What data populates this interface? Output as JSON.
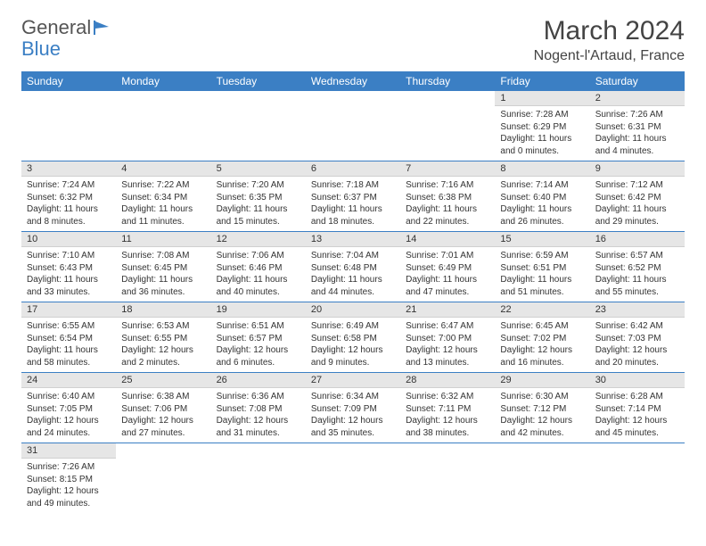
{
  "logo": {
    "text1": "General",
    "text2": "Blue"
  },
  "title": "March 2024",
  "location": "Nogent-l'Artaud, France",
  "colors": {
    "header_bg": "#3b7fc4",
    "header_text": "#ffffff",
    "daynum_bg": "#e6e6e6",
    "row_border": "#3b7fc4",
    "body_text": "#333333",
    "background": "#ffffff"
  },
  "weekdays": [
    "Sunday",
    "Monday",
    "Tuesday",
    "Wednesday",
    "Thursday",
    "Friday",
    "Saturday"
  ],
  "weeks": [
    [
      null,
      null,
      null,
      null,
      null,
      {
        "n": "1",
        "sunrise": "Sunrise: 7:28 AM",
        "sunset": "Sunset: 6:29 PM",
        "daylight": "Daylight: 11 hours and 0 minutes."
      },
      {
        "n": "2",
        "sunrise": "Sunrise: 7:26 AM",
        "sunset": "Sunset: 6:31 PM",
        "daylight": "Daylight: 11 hours and 4 minutes."
      }
    ],
    [
      {
        "n": "3",
        "sunrise": "Sunrise: 7:24 AM",
        "sunset": "Sunset: 6:32 PM",
        "daylight": "Daylight: 11 hours and 8 minutes."
      },
      {
        "n": "4",
        "sunrise": "Sunrise: 7:22 AM",
        "sunset": "Sunset: 6:34 PM",
        "daylight": "Daylight: 11 hours and 11 minutes."
      },
      {
        "n": "5",
        "sunrise": "Sunrise: 7:20 AM",
        "sunset": "Sunset: 6:35 PM",
        "daylight": "Daylight: 11 hours and 15 minutes."
      },
      {
        "n": "6",
        "sunrise": "Sunrise: 7:18 AM",
        "sunset": "Sunset: 6:37 PM",
        "daylight": "Daylight: 11 hours and 18 minutes."
      },
      {
        "n": "7",
        "sunrise": "Sunrise: 7:16 AM",
        "sunset": "Sunset: 6:38 PM",
        "daylight": "Daylight: 11 hours and 22 minutes."
      },
      {
        "n": "8",
        "sunrise": "Sunrise: 7:14 AM",
        "sunset": "Sunset: 6:40 PM",
        "daylight": "Daylight: 11 hours and 26 minutes."
      },
      {
        "n": "9",
        "sunrise": "Sunrise: 7:12 AM",
        "sunset": "Sunset: 6:42 PM",
        "daylight": "Daylight: 11 hours and 29 minutes."
      }
    ],
    [
      {
        "n": "10",
        "sunrise": "Sunrise: 7:10 AM",
        "sunset": "Sunset: 6:43 PM",
        "daylight": "Daylight: 11 hours and 33 minutes."
      },
      {
        "n": "11",
        "sunrise": "Sunrise: 7:08 AM",
        "sunset": "Sunset: 6:45 PM",
        "daylight": "Daylight: 11 hours and 36 minutes."
      },
      {
        "n": "12",
        "sunrise": "Sunrise: 7:06 AM",
        "sunset": "Sunset: 6:46 PM",
        "daylight": "Daylight: 11 hours and 40 minutes."
      },
      {
        "n": "13",
        "sunrise": "Sunrise: 7:04 AM",
        "sunset": "Sunset: 6:48 PM",
        "daylight": "Daylight: 11 hours and 44 minutes."
      },
      {
        "n": "14",
        "sunrise": "Sunrise: 7:01 AM",
        "sunset": "Sunset: 6:49 PM",
        "daylight": "Daylight: 11 hours and 47 minutes."
      },
      {
        "n": "15",
        "sunrise": "Sunrise: 6:59 AM",
        "sunset": "Sunset: 6:51 PM",
        "daylight": "Daylight: 11 hours and 51 minutes."
      },
      {
        "n": "16",
        "sunrise": "Sunrise: 6:57 AM",
        "sunset": "Sunset: 6:52 PM",
        "daylight": "Daylight: 11 hours and 55 minutes."
      }
    ],
    [
      {
        "n": "17",
        "sunrise": "Sunrise: 6:55 AM",
        "sunset": "Sunset: 6:54 PM",
        "daylight": "Daylight: 11 hours and 58 minutes."
      },
      {
        "n": "18",
        "sunrise": "Sunrise: 6:53 AM",
        "sunset": "Sunset: 6:55 PM",
        "daylight": "Daylight: 12 hours and 2 minutes."
      },
      {
        "n": "19",
        "sunrise": "Sunrise: 6:51 AM",
        "sunset": "Sunset: 6:57 PM",
        "daylight": "Daylight: 12 hours and 6 minutes."
      },
      {
        "n": "20",
        "sunrise": "Sunrise: 6:49 AM",
        "sunset": "Sunset: 6:58 PM",
        "daylight": "Daylight: 12 hours and 9 minutes."
      },
      {
        "n": "21",
        "sunrise": "Sunrise: 6:47 AM",
        "sunset": "Sunset: 7:00 PM",
        "daylight": "Daylight: 12 hours and 13 minutes."
      },
      {
        "n": "22",
        "sunrise": "Sunrise: 6:45 AM",
        "sunset": "Sunset: 7:02 PM",
        "daylight": "Daylight: 12 hours and 16 minutes."
      },
      {
        "n": "23",
        "sunrise": "Sunrise: 6:42 AM",
        "sunset": "Sunset: 7:03 PM",
        "daylight": "Daylight: 12 hours and 20 minutes."
      }
    ],
    [
      {
        "n": "24",
        "sunrise": "Sunrise: 6:40 AM",
        "sunset": "Sunset: 7:05 PM",
        "daylight": "Daylight: 12 hours and 24 minutes."
      },
      {
        "n": "25",
        "sunrise": "Sunrise: 6:38 AM",
        "sunset": "Sunset: 7:06 PM",
        "daylight": "Daylight: 12 hours and 27 minutes."
      },
      {
        "n": "26",
        "sunrise": "Sunrise: 6:36 AM",
        "sunset": "Sunset: 7:08 PM",
        "daylight": "Daylight: 12 hours and 31 minutes."
      },
      {
        "n": "27",
        "sunrise": "Sunrise: 6:34 AM",
        "sunset": "Sunset: 7:09 PM",
        "daylight": "Daylight: 12 hours and 35 minutes."
      },
      {
        "n": "28",
        "sunrise": "Sunrise: 6:32 AM",
        "sunset": "Sunset: 7:11 PM",
        "daylight": "Daylight: 12 hours and 38 minutes."
      },
      {
        "n": "29",
        "sunrise": "Sunrise: 6:30 AM",
        "sunset": "Sunset: 7:12 PM",
        "daylight": "Daylight: 12 hours and 42 minutes."
      },
      {
        "n": "30",
        "sunrise": "Sunrise: 6:28 AM",
        "sunset": "Sunset: 7:14 PM",
        "daylight": "Daylight: 12 hours and 45 minutes."
      }
    ],
    [
      {
        "n": "31",
        "sunrise": "Sunrise: 7:26 AM",
        "sunset": "Sunset: 8:15 PM",
        "daylight": "Daylight: 12 hours and 49 minutes."
      },
      null,
      null,
      null,
      null,
      null,
      null
    ]
  ]
}
